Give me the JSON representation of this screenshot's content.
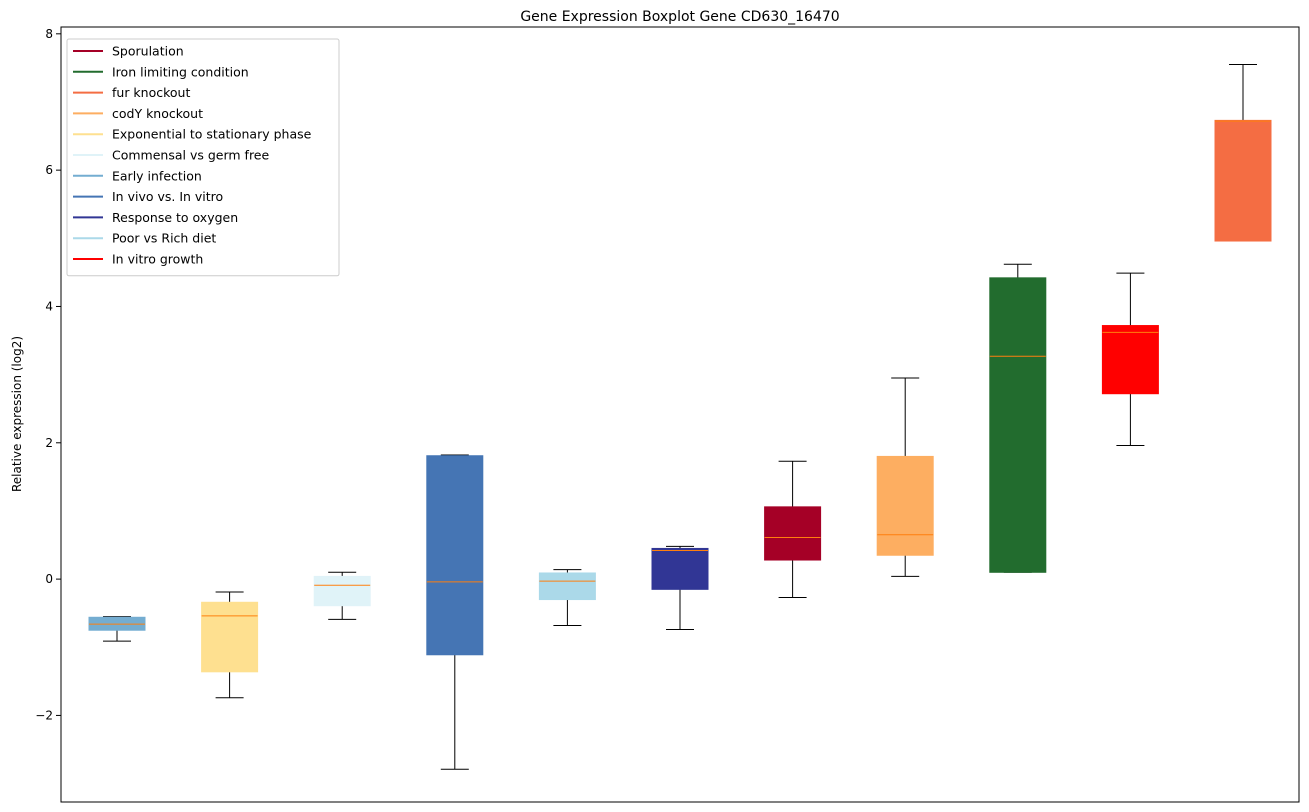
{
  "chart_data": {
    "type": "boxplot",
    "title": "Gene Expression Boxplot Gene CD630_16470",
    "xlabel": "",
    "ylabel": "Relative expression (log2)",
    "ylim": [
      -3.27,
      8.1
    ],
    "yticks": [
      -2,
      0,
      2,
      4,
      6,
      8
    ],
    "ytick_labels": [
      "−2",
      "0",
      "2",
      "4",
      "6",
      "8"
    ],
    "grid": false,
    "legend_position": "top-left",
    "legend": [
      {
        "label": "Sporulation",
        "color": "#a50026"
      },
      {
        "label": "Iron limiting condition",
        "color": "#226c2e"
      },
      {
        "label": "fur knockout",
        "color": "#f46d43"
      },
      {
        "label": "codY knockout",
        "color": "#fdae61"
      },
      {
        "label": "Exponential to stationary phase",
        "color": "#fee090"
      },
      {
        "label": "Commensal vs germ free",
        "color": "#e0f3f8"
      },
      {
        "label": "Early infection",
        "color": "#74add1"
      },
      {
        "label": "In vivo vs. In vitro",
        "color": "#4575b4"
      },
      {
        "label": "Response to oxygen",
        "color": "#313695"
      },
      {
        "label": "Poor vs Rich diet",
        "color": "#abd9e9"
      },
      {
        "label": "In vitro growth",
        "color": "#ff0000"
      }
    ],
    "boxes": [
      {
        "condition": "Early infection",
        "color": "#74add1",
        "whisker_low": -0.91,
        "q1": -0.75,
        "median": -0.66,
        "q3": -0.56,
        "whisker_high": -0.55
      },
      {
        "condition": "Exponential to stationary phase",
        "color": "#fee090",
        "whisker_low": -1.74,
        "q1": -1.36,
        "median": -0.54,
        "q3": -0.34,
        "whisker_high": -0.19
      },
      {
        "condition": "Commensal vs germ free",
        "color": "#e0f3f8",
        "whisker_low": -0.59,
        "q1": -0.39,
        "median": -0.09,
        "q3": 0.04,
        "whisker_high": 0.1
      },
      {
        "condition": "In vivo vs. In vitro",
        "color": "#4575b4",
        "whisker_low": -2.79,
        "q1": -1.11,
        "median": -0.04,
        "q3": 1.81,
        "whisker_high": 1.82
      },
      {
        "condition": "Poor vs Rich diet",
        "color": "#abd9e9",
        "whisker_low": -0.68,
        "q1": -0.3,
        "median": -0.03,
        "q3": 0.09,
        "whisker_high": 0.14
      },
      {
        "condition": "Response to oxygen",
        "color": "#313695",
        "whisker_low": -0.74,
        "q1": -0.15,
        "median": 0.42,
        "q3": 0.45,
        "whisker_high": 0.48
      },
      {
        "condition": "Sporulation",
        "color": "#a50026",
        "whisker_low": -0.27,
        "q1": 0.28,
        "median": 0.61,
        "q3": 1.06,
        "whisker_high": 1.73
      },
      {
        "condition": "codY knockout",
        "color": "#fdae61",
        "whisker_low": 0.04,
        "q1": 0.35,
        "median": 0.65,
        "q3": 1.8,
        "whisker_high": 2.95
      },
      {
        "condition": "Iron limiting condition",
        "color": "#226c2e",
        "whisker_low": 0.1,
        "q1": 0.1,
        "median": 3.27,
        "q3": 4.42,
        "whisker_high": 4.62
      },
      {
        "condition": "In vitro growth",
        "color": "#ff0000",
        "whisker_low": 1.96,
        "q1": 2.72,
        "median": 3.62,
        "q3": 3.72,
        "whisker_high": 4.49
      },
      {
        "condition": "fur knockout",
        "color": "#f46d43",
        "whisker_low": 4.96,
        "q1": 4.96,
        "median": 6.72,
        "q3": 6.73,
        "whisker_high": 7.55
      }
    ]
  },
  "colors": {
    "median": "#ff7f0e",
    "whisker": "#000000",
    "axes": "#000000",
    "background": "#ffffff",
    "legend_border": "#cccccc"
  }
}
